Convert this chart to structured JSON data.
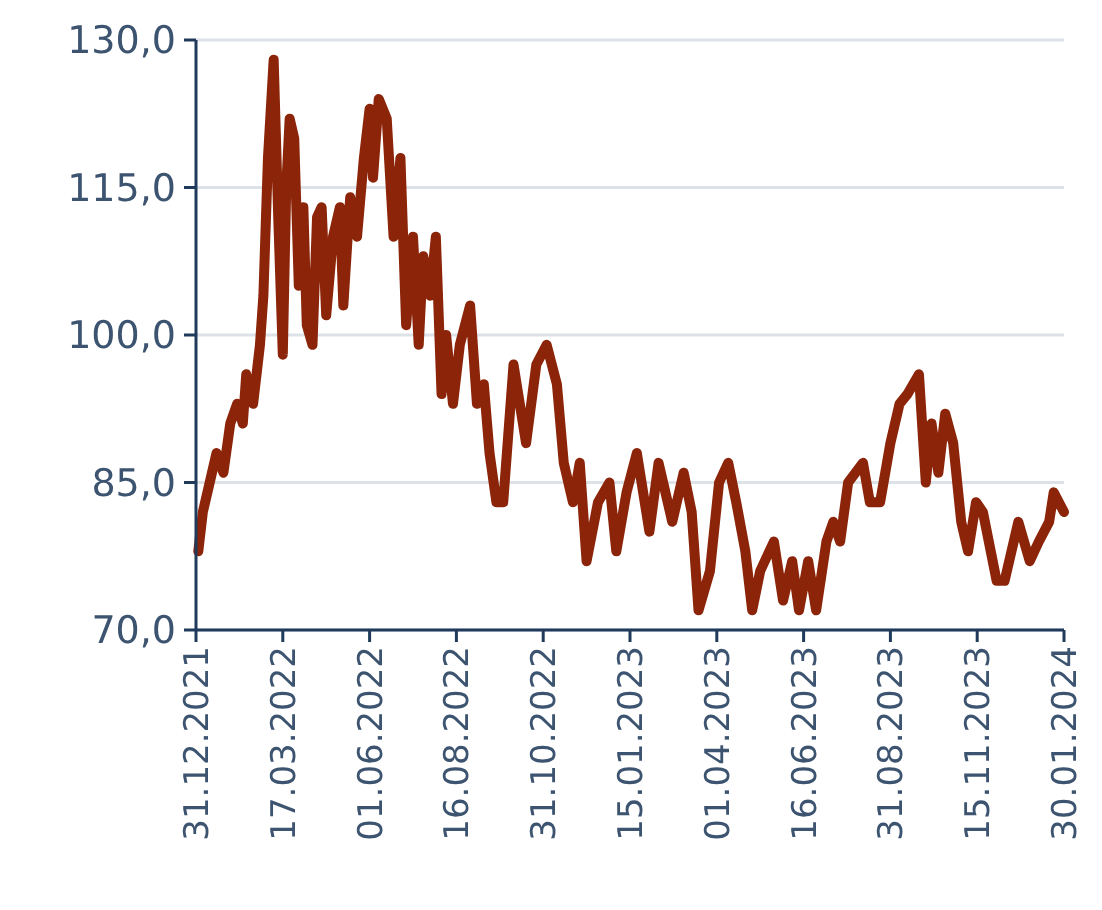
{
  "chart_data": {
    "type": "line",
    "x": [
      "2022-01-02",
      "2022-01-06",
      "2022-01-12",
      "2022-01-18",
      "2022-01-24",
      "2022-01-30",
      "2022-02-05",
      "2022-02-10",
      "2022-02-13",
      "2022-02-19",
      "2022-02-25",
      "2022-02-28",
      "2022-03-04",
      "2022-03-09",
      "2022-03-13",
      "2022-03-17",
      "2022-03-20",
      "2022-03-23",
      "2022-03-27",
      "2022-03-31",
      "2022-04-04",
      "2022-04-07",
      "2022-04-12",
      "2022-04-16",
      "2022-04-20",
      "2022-04-24",
      "2022-04-30",
      "2022-05-06",
      "2022-05-09",
      "2022-05-15",
      "2022-05-21",
      "2022-05-27",
      "2022-06-01",
      "2022-06-04",
      "2022-06-09",
      "2022-06-16",
      "2022-06-22",
      "2022-06-28",
      "2022-07-03",
      "2022-07-09",
      "2022-07-14",
      "2022-07-18",
      "2022-07-24",
      "2022-07-29",
      "2022-08-03",
      "2022-08-07",
      "2022-08-13",
      "2022-08-19",
      "2022-08-28",
      "2022-09-03",
      "2022-09-09",
      "2022-09-14",
      "2022-09-20",
      "2022-09-26",
      "2022-10-05",
      "2022-10-16",
      "2022-10-25",
      "2022-11-03",
      "2022-11-12",
      "2022-11-18",
      "2022-11-26",
      "2022-12-02",
      "2022-12-08",
      "2022-12-18",
      "2022-12-28",
      "2023-01-03",
      "2023-01-12",
      "2023-01-21",
      "2023-02-01",
      "2023-02-09",
      "2023-02-21",
      "2023-03-03",
      "2023-03-10",
      "2023-03-16",
      "2023-03-26",
      "2023-04-03",
      "2023-04-11",
      "2023-04-18",
      "2023-04-26",
      "2023-05-02",
      "2023-05-09",
      "2023-05-21",
      "2023-05-29",
      "2023-06-06",
      "2023-06-12",
      "2023-06-20",
      "2023-06-27",
      "2023-07-06",
      "2023-07-12",
      "2023-07-18",
      "2023-07-25",
      "2023-08-07",
      "2023-08-13",
      "2023-08-22",
      "2023-08-31",
      "2023-09-08",
      "2023-09-15",
      "2023-09-25",
      "2023-10-01",
      "2023-10-06",
      "2023-10-12",
      "2023-10-18",
      "2023-10-25",
      "2023-11-01",
      "2023-11-07",
      "2023-11-14",
      "2023-11-20",
      "2023-12-02",
      "2023-12-09",
      "2023-12-21",
      "2023-12-31",
      "2024-01-08",
      "2024-01-17",
      "2024-01-21",
      "2024-01-30"
    ],
    "series": [
      {
        "color": "#8b2409",
        "values": [
          78,
          82,
          85,
          88,
          86,
          91,
          93,
          91,
          96,
          93,
          99,
          104,
          118,
          128,
          112,
          98,
          115,
          122,
          120,
          105,
          113,
          101,
          99,
          112,
          113,
          102,
          110,
          113,
          103,
          114,
          110,
          118,
          123,
          116,
          124,
          122,
          110,
          118,
          101,
          110,
          99,
          108,
          104,
          110,
          94,
          100,
          93,
          99,
          103,
          93,
          95,
          88,
          83,
          83,
          97,
          89,
          97,
          99,
          95,
          87,
          83,
          87,
          77,
          83,
          85,
          78,
          84,
          88,
          80,
          87,
          81,
          86,
          82,
          72,
          76,
          85,
          87,
          83,
          78,
          72,
          76,
          79,
          73,
          77,
          72,
          77,
          72,
          79,
          81,
          79,
          85,
          87,
          83,
          83,
          89,
          93,
          94,
          96,
          85,
          91,
          86,
          92,
          89,
          81,
          78,
          83,
          82,
          75,
          75,
          81,
          77,
          79,
          81,
          84,
          82
        ]
      }
    ],
    "ylim": [
      70,
      130
    ],
    "yticks": [
      {
        "value": 70,
        "label": "70,0"
      },
      {
        "value": 85,
        "label": "85,0"
      },
      {
        "value": 100,
        "label": "100,0"
      },
      {
        "value": 115,
        "label": "115,0"
      },
      {
        "value": 130,
        "label": "130,0"
      }
    ],
    "xlim": [
      "2021-12-31",
      "2024-01-30"
    ],
    "xticks": [
      {
        "value": "2021-12-31",
        "label": "31.12.2021"
      },
      {
        "value": "2022-03-17",
        "label": "17.03.2022"
      },
      {
        "value": "2022-06-01",
        "label": "01.06.2022"
      },
      {
        "value": "2022-08-16",
        "label": "16.08.2022"
      },
      {
        "value": "2022-10-31",
        "label": "31.10.2022"
      },
      {
        "value": "2023-01-15",
        "label": "15.01.2023"
      },
      {
        "value": "2023-04-01",
        "label": "01.04.2023"
      },
      {
        "value": "2023-06-16",
        "label": "16.06.2023"
      },
      {
        "value": "2023-08-31",
        "label": "31.08.2023"
      },
      {
        "value": "2023-11-15",
        "label": "15.11.2023"
      },
      {
        "value": "2024-01-30",
        "label": "30.01.2024"
      }
    ],
    "grid": "y",
    "marker": "none",
    "line_style": "solid"
  }
}
